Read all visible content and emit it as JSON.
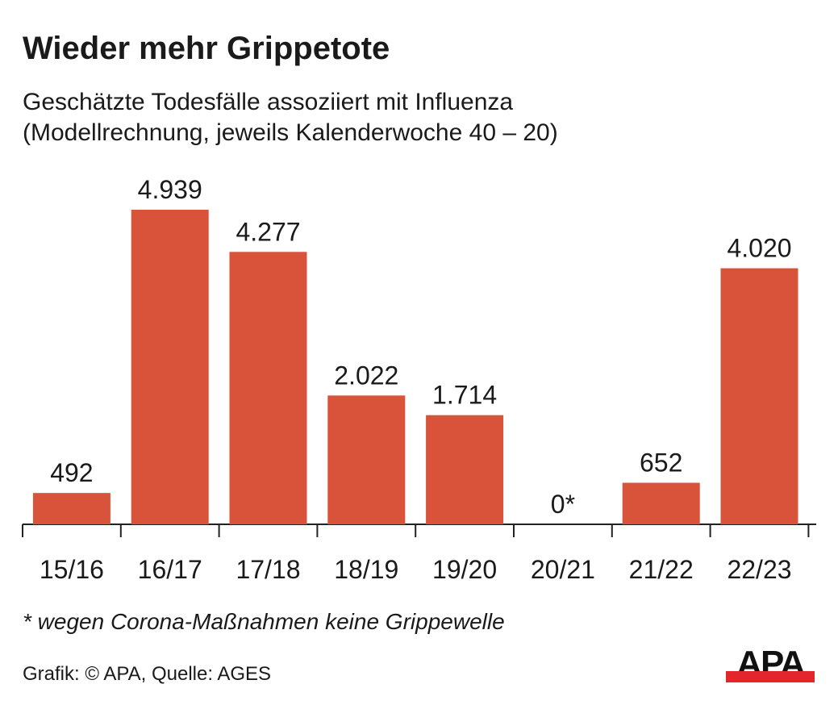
{
  "title": "Wieder mehr Grippetote",
  "subtitle_line1": "Geschätzte Todesfälle assoziiert mit Influenza",
  "subtitle_line2": "(Modellrechnung, jeweils Kalenderwoche 40 – 20)",
  "footnote": "* wegen Corona-Maßnahmen keine Grippewelle",
  "source": "Grafik: © APA, Quelle: AGES",
  "logo_text": "APA",
  "colors": {
    "bar": "#d9523a",
    "logo_bar": "#e3262b"
  },
  "chart_data": {
    "type": "bar",
    "categories": [
      "15/16",
      "16/17",
      "17/18",
      "18/19",
      "19/20",
      "20/21",
      "21/22",
      "22/23"
    ],
    "values": [
      492,
      4939,
      4277,
      2022,
      1714,
      0,
      652,
      4020
    ],
    "data_labels": [
      "492",
      "4.939",
      "4.277",
      "2.022",
      "1.714",
      "0*",
      "652",
      "4.020"
    ],
    "title": "Wieder mehr Grippetote",
    "xlabel": "",
    "ylabel": "",
    "ylim": [
      0,
      4939
    ],
    "grid": false
  }
}
